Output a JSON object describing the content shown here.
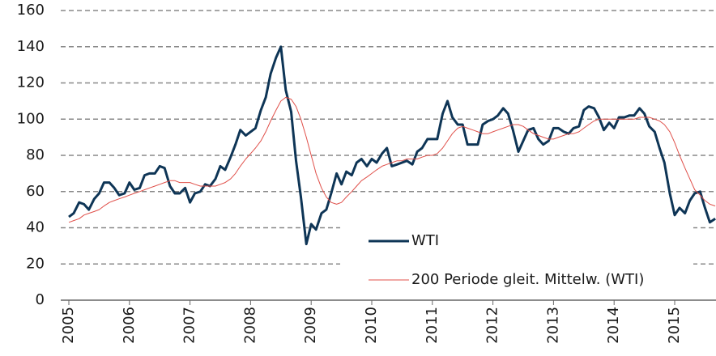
{
  "chart_data": {
    "type": "line",
    "x": [
      2005,
      2005.08,
      2005.17,
      2005.25,
      2005.33,
      2005.42,
      2005.5,
      2005.58,
      2005.67,
      2005.75,
      2005.83,
      2005.92,
      2006,
      2006.08,
      2006.17,
      2006.25,
      2006.33,
      2006.42,
      2006.5,
      2006.58,
      2006.67,
      2006.75,
      2006.83,
      2006.92,
      2007,
      2007.08,
      2007.17,
      2007.25,
      2007.33,
      2007.42,
      2007.5,
      2007.58,
      2007.67,
      2007.75,
      2007.83,
      2007.92,
      2008,
      2008.08,
      2008.17,
      2008.25,
      2008.33,
      2008.42,
      2008.5,
      2008.58,
      2008.67,
      2008.75,
      2008.83,
      2008.92,
      2009,
      2009.08,
      2009.17,
      2009.25,
      2009.33,
      2009.42,
      2009.5,
      2009.58,
      2009.67,
      2009.75,
      2009.83,
      2009.92,
      2010,
      2010.08,
      2010.17,
      2010.25,
      2010.33,
      2010.42,
      2010.5,
      2010.58,
      2010.67,
      2010.75,
      2010.83,
      2010.92,
      2011,
      2011.08,
      2011.17,
      2011.25,
      2011.33,
      2011.42,
      2011.5,
      2011.58,
      2011.67,
      2011.75,
      2011.83,
      2011.92,
      2012,
      2012.08,
      2012.17,
      2012.25,
      2012.33,
      2012.42,
      2012.5,
      2012.58,
      2012.67,
      2012.75,
      2012.83,
      2012.92,
      2013,
      2013.08,
      2013.17,
      2013.25,
      2013.33,
      2013.42,
      2013.5,
      2013.58,
      2013.67,
      2013.75,
      2013.83,
      2013.92,
      2014,
      2014.08,
      2014.17,
      2014.25,
      2014.33,
      2014.42,
      2014.5,
      2014.58,
      2014.67,
      2014.75,
      2014.83,
      2014.92,
      2015,
      2015.08,
      2015.17,
      2015.25,
      2015.33,
      2015.42,
      2015.5,
      2015.58,
      2015.67
    ],
    "series": [
      {
        "name": "WTI",
        "color": "#0e3556",
        "values": [
          46,
          48,
          54,
          53,
          50,
          56,
          59,
          65,
          65,
          62,
          58,
          59,
          65,
          61,
          62,
          69,
          70,
          70,
          74,
          73,
          63,
          59,
          59,
          62,
          54,
          59,
          60,
          64,
          63,
          67,
          74,
          72,
          79,
          86,
          94,
          91,
          93,
          95,
          105,
          112,
          125,
          134,
          140,
          116,
          104,
          77,
          57,
          31,
          42,
          39,
          48,
          50,
          59,
          70,
          64,
          71,
          69,
          76,
          78,
          74,
          78,
          76,
          81,
          84,
          74,
          75,
          76,
          77,
          75,
          82,
          84,
          89,
          89,
          89,
          103,
          110,
          101,
          97,
          97,
          86,
          86,
          86,
          97,
          99,
          100,
          102,
          106,
          103,
          94,
          82,
          88,
          94,
          95,
          89,
          86,
          88,
          95,
          95,
          93,
          92,
          95,
          96,
          105,
          107,
          106,
          101,
          94,
          98,
          95,
          101,
          101,
          102,
          102,
          106,
          103,
          96,
          93,
          84,
          76,
          59,
          47,
          51,
          48,
          55,
          59,
          60,
          51,
          43,
          45
        ]
      },
      {
        "name": "200 Periode gleit. Mittelw. (WTI)",
        "color": "#e0504a",
        "values": [
          43,
          44,
          45,
          47,
          48,
          49,
          50,
          52,
          54,
          55,
          56,
          57,
          58,
          59,
          60,
          61,
          62,
          63,
          64,
          65,
          66,
          66,
          65,
          65,
          65,
          64,
          63,
          63,
          63,
          63,
          64,
          65,
          67,
          70,
          74,
          78,
          81,
          84,
          88,
          93,
          99,
          105,
          110,
          112,
          111,
          107,
          100,
          90,
          80,
          70,
          62,
          57,
          54,
          53,
          54,
          57,
          60,
          63,
          66,
          68,
          70,
          72,
          74,
          75,
          76,
          77,
          77,
          78,
          78,
          78,
          79,
          80,
          80,
          81,
          84,
          88,
          92,
          95,
          96,
          95,
          94,
          93,
          92,
          92,
          93,
          94,
          95,
          96,
          97,
          97,
          96,
          94,
          92,
          91,
          90,
          89,
          89,
          90,
          91,
          92,
          92,
          93,
          95,
          97,
          99,
          100,
          100,
          100,
          100,
          100,
          100,
          100,
          100,
          101,
          101,
          101,
          100,
          99,
          97,
          93,
          87,
          80,
          73,
          67,
          61,
          58,
          55,
          53,
          52
        ]
      }
    ],
    "xlim": [
      2005,
      2015.68
    ],
    "xticks": [
      2005,
      2006,
      2007,
      2008,
      2009,
      2010,
      2011,
      2012,
      2013,
      2014,
      2015
    ],
    "ylim": [
      0,
      160
    ],
    "yticks": [
      0,
      20,
      40,
      60,
      80,
      100,
      120,
      140,
      160
    ],
    "grid": true,
    "legend": "lower right"
  }
}
